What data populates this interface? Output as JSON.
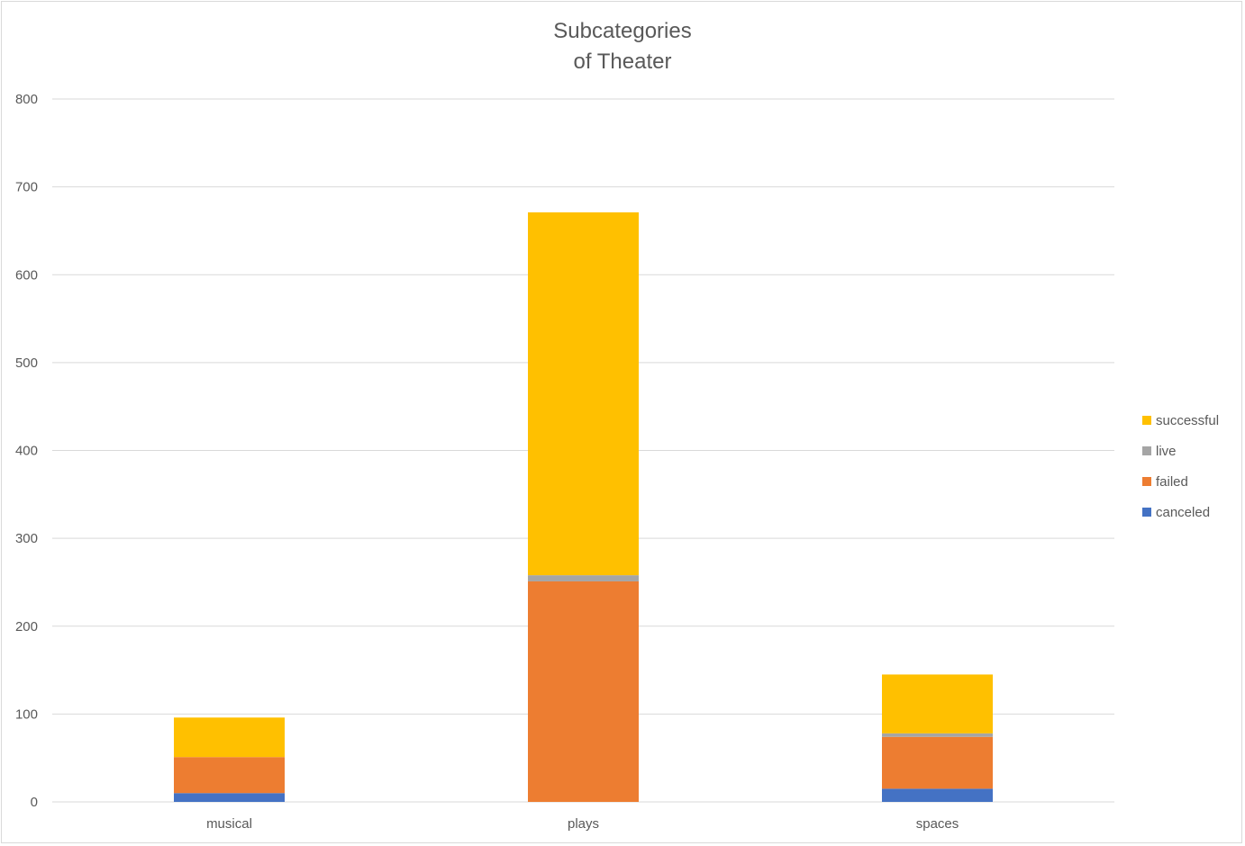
{
  "chart_data": {
    "type": "bar",
    "stacked": true,
    "title": [
      "Subcategories",
      "of Theater"
    ],
    "xlabel": "",
    "ylabel": "",
    "categories": [
      "musical",
      "plays",
      "spaces"
    ],
    "ylim": [
      0,
      800
    ],
    "yticks": [
      0,
      100,
      200,
      300,
      400,
      500,
      600,
      700,
      800
    ],
    "yticks_text": [
      "0",
      "100",
      "200",
      "300",
      "400",
      "500",
      "600",
      "700",
      "800"
    ],
    "grid": true,
    "legend_position": "right",
    "series": [
      {
        "name": "canceled",
        "color": "#4472C4",
        "values": [
          10,
          0,
          15
        ]
      },
      {
        "name": "failed",
        "color": "#ED7D31",
        "values": [
          41,
          251,
          59
        ]
      },
      {
        "name": "live",
        "color": "#A5A5A5",
        "values": [
          0,
          7,
          4
        ]
      },
      {
        "name": "successful",
        "color": "#FFC000",
        "values": [
          45,
          413,
          67
        ]
      }
    ],
    "legend_order": [
      "successful",
      "live",
      "failed",
      "canceled"
    ]
  }
}
